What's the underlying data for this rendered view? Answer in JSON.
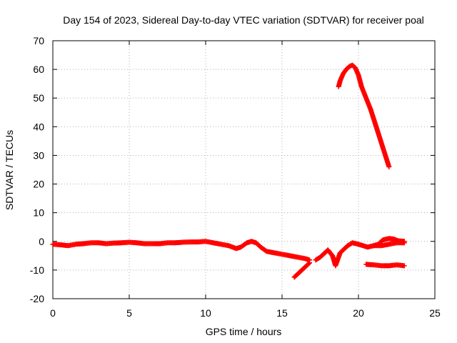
{
  "chart_data": {
    "type": "scatter",
    "title": "Day 154 of 2023, Sidereal Day-to-day VTEC variation (SDTVAR) for receiver poal",
    "xlabel": "GPS time / hours",
    "ylabel": "SDTVAR / TECUs",
    "xlim": [
      0,
      25
    ],
    "ylim": [
      -20,
      70
    ],
    "x_ticks": [
      0,
      5,
      10,
      15,
      20,
      25
    ],
    "y_ticks": [
      -20,
      -10,
      0,
      10,
      20,
      30,
      40,
      50,
      60,
      70
    ],
    "grid": true,
    "marker": "+",
    "color": "#ff0000",
    "series": [
      {
        "name": "main track",
        "points": [
          [
            0.0,
            -1.0
          ],
          [
            0.5,
            -1.2
          ],
          [
            1.0,
            -1.5
          ],
          [
            1.5,
            -1.0
          ],
          [
            2.0,
            -0.8
          ],
          [
            2.5,
            -0.5
          ],
          [
            3.0,
            -0.5
          ],
          [
            3.5,
            -0.8
          ],
          [
            4.0,
            -0.6
          ],
          [
            4.5,
            -0.5
          ],
          [
            5.0,
            -0.3
          ],
          [
            5.5,
            -0.5
          ],
          [
            6.0,
            -0.8
          ],
          [
            6.5,
            -0.8
          ],
          [
            7.0,
            -0.8
          ],
          [
            7.5,
            -0.5
          ],
          [
            8.0,
            -0.5
          ],
          [
            8.5,
            -0.3
          ],
          [
            9.0,
            -0.2
          ],
          [
            9.5,
            -0.2
          ],
          [
            10.0,
            0.0
          ],
          [
            10.5,
            -0.5
          ],
          [
            11.0,
            -1.0
          ],
          [
            11.5,
            -1.5
          ],
          [
            12.0,
            -2.5
          ],
          [
            12.3,
            -2.0
          ],
          [
            12.7,
            -0.5
          ],
          [
            13.0,
            0.0
          ],
          [
            13.3,
            -0.5
          ],
          [
            13.6,
            -2.0
          ],
          [
            14.0,
            -3.5
          ],
          [
            14.5,
            -4.0
          ],
          [
            15.0,
            -4.5
          ],
          [
            15.5,
            -5.0
          ],
          [
            16.0,
            -5.5
          ],
          [
            16.5,
            -6.0
          ],
          [
            16.8,
            -6.5
          ]
        ]
      },
      {
        "name": "trailing dip",
        "points": [
          [
            15.8,
            -12.5
          ],
          [
            16.0,
            -11.5
          ],
          [
            16.3,
            -10.0
          ],
          [
            16.6,
            -8.5
          ],
          [
            16.8,
            -7.5
          ]
        ]
      },
      {
        "name": "recovery",
        "points": [
          [
            17.2,
            -6.5
          ],
          [
            17.5,
            -5.5
          ],
          [
            18.0,
            -3.0
          ],
          [
            18.3,
            -5.0
          ],
          [
            18.5,
            -8.5
          ],
          [
            18.8,
            -4.0
          ],
          [
            19.0,
            -3.0
          ],
          [
            19.3,
            -1.5
          ],
          [
            19.6,
            -0.5
          ],
          [
            20.0,
            -1.0
          ],
          [
            20.3,
            -1.5
          ],
          [
            20.6,
            -2.0
          ],
          [
            21.0,
            -1.5
          ],
          [
            21.3,
            -1.0
          ],
          [
            21.6,
            0.5
          ],
          [
            22.0,
            1.0
          ],
          [
            22.3,
            0.8
          ],
          [
            22.6,
            0.2
          ],
          [
            23.0,
            0.0
          ]
        ]
      },
      {
        "name": "lower branch",
        "points": [
          [
            20.5,
            -8.0
          ],
          [
            21.0,
            -8.2
          ],
          [
            21.5,
            -8.5
          ],
          [
            22.0,
            -8.5
          ],
          [
            22.5,
            -8.2
          ],
          [
            23.0,
            -8.5
          ]
        ]
      },
      {
        "name": "return branch",
        "points": [
          [
            21.0,
            -1.5
          ],
          [
            21.5,
            -1.5
          ],
          [
            22.0,
            -1.0
          ],
          [
            22.5,
            -0.5
          ],
          [
            23.0,
            -0.5
          ]
        ]
      },
      {
        "name": "high arc",
        "points": [
          [
            18.7,
            54.0
          ],
          [
            18.8,
            56.0
          ],
          [
            19.0,
            58.5
          ],
          [
            19.2,
            60.0
          ],
          [
            19.4,
            61.0
          ],
          [
            19.6,
            61.5
          ],
          [
            19.8,
            60.5
          ],
          [
            20.0,
            58.0
          ],
          [
            20.2,
            54.0
          ],
          [
            20.5,
            50.0
          ],
          [
            20.8,
            46.0
          ],
          [
            21.1,
            41.0
          ],
          [
            21.4,
            36.0
          ],
          [
            21.7,
            31.0
          ],
          [
            22.0,
            26.0
          ]
        ]
      }
    ]
  }
}
